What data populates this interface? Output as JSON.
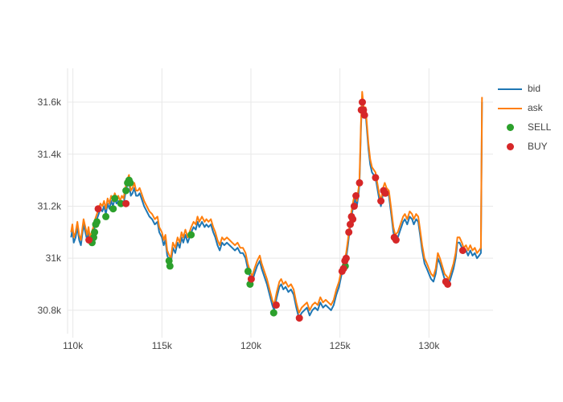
{
  "page": {
    "background": "#ffffff"
  },
  "chart_data": {
    "type": "line",
    "title": "",
    "xlabel": "",
    "ylabel": "",
    "grid": true,
    "grid_color": "#e8e8e8",
    "axis_line_color": "#e5e5e5",
    "tick_label_color": "#444444",
    "legend_position": "top-right-outside",
    "xlim": [
      109.7,
      133.6
    ],
    "ylim": [
      30.71,
      31.73
    ],
    "x_ticks": [
      {
        "v": 110,
        "label": "110k"
      },
      {
        "v": 115,
        "label": "115k"
      },
      {
        "v": 120,
        "label": "120k"
      },
      {
        "v": 125,
        "label": "125k"
      },
      {
        "v": 130,
        "label": "130k"
      }
    ],
    "y_ticks": [
      {
        "v": 30.8,
        "label": "30.8k"
      },
      {
        "v": 31.0,
        "label": "31k"
      },
      {
        "v": 31.2,
        "label": "31.2k"
      },
      {
        "v": 31.4,
        "label": "31.4k"
      },
      {
        "v": 31.6,
        "label": "31.6k"
      }
    ],
    "legend": [
      {
        "label": "bid",
        "type": "line",
        "color": "#1f77b4"
      },
      {
        "label": "ask",
        "type": "line",
        "color": "#ff7f0e"
      },
      {
        "label": "SELL",
        "type": "marker",
        "color": "#2ca02c"
      },
      {
        "label": "BUY",
        "type": "marker",
        "color": "#d62728"
      }
    ],
    "x": [
      109.9,
      109.97,
      110.05,
      110.15,
      110.25,
      110.35,
      110.45,
      110.6,
      110.7,
      110.8,
      110.88,
      110.95,
      111.05,
      111.15,
      111.25,
      111.35,
      111.45,
      111.55,
      111.65,
      111.75,
      111.85,
      111.95,
      112.05,
      112.15,
      112.25,
      112.35,
      112.45,
      112.55,
      112.65,
      112.75,
      112.85,
      112.95,
      113.05,
      113.15,
      113.25,
      113.35,
      113.45,
      113.55,
      113.65,
      113.75,
      113.85,
      114.0,
      114.15,
      114.3,
      114.45,
      114.6,
      114.75,
      114.85,
      115.0,
      115.1,
      115.2,
      115.3,
      115.42,
      115.5,
      115.62,
      115.75,
      115.88,
      116.0,
      116.1,
      116.2,
      116.32,
      116.45,
      116.55,
      116.65,
      116.78,
      116.9,
      117.0,
      117.1,
      117.25,
      117.4,
      117.5,
      117.62,
      117.75,
      117.88,
      118.0,
      118.12,
      118.25,
      118.38,
      118.5,
      118.65,
      118.8,
      118.95,
      119.1,
      119.25,
      119.4,
      119.55,
      119.7,
      119.82,
      119.95,
      120.07,
      120.2,
      120.35,
      120.5,
      120.6,
      120.75,
      120.9,
      121.05,
      121.2,
      121.3,
      121.45,
      121.6,
      121.7,
      121.82,
      121.95,
      122.1,
      122.25,
      122.4,
      122.55,
      122.7,
      122.85,
      123.0,
      123.15,
      123.3,
      123.45,
      123.6,
      123.75,
      123.9,
      124.05,
      124.2,
      124.35,
      124.5,
      124.65,
      124.8,
      124.95,
      125.1,
      125.25,
      125.35,
      125.45,
      125.55,
      125.65,
      125.75,
      125.85,
      125.95,
      126.05,
      126.1,
      126.18,
      126.25,
      126.32,
      126.38,
      126.44,
      126.5,
      126.6,
      126.7,
      126.8,
      126.9,
      127.0,
      127.1,
      127.2,
      127.3,
      127.42,
      127.52,
      127.62,
      127.75,
      127.88,
      128.0,
      128.1,
      128.25,
      128.4,
      128.55,
      128.65,
      128.78,
      128.92,
      129.05,
      129.15,
      129.28,
      129.4,
      129.5,
      129.62,
      129.75,
      129.88,
      130.0,
      130.12,
      130.25,
      130.38,
      130.5,
      130.62,
      130.75,
      130.88,
      131.0,
      131.12,
      131.25,
      131.38,
      131.5,
      131.6,
      131.72,
      131.85,
      131.95,
      132.08,
      132.2,
      132.32,
      132.45,
      132.58,
      132.7,
      132.82,
      132.92,
      132.98
    ],
    "series": [
      {
        "name": "bid",
        "color": "#1f77b4",
        "width": 2,
        "y": [
          31.08,
          31.11,
          31.06,
          31.08,
          31.12,
          31.07,
          31.05,
          31.13,
          31.1,
          31.07,
          31.1,
          31.06,
          31.08,
          31.1,
          31.13,
          31.15,
          31.17,
          31.19,
          31.18,
          31.2,
          31.17,
          31.21,
          31.19,
          31.22,
          31.2,
          31.23,
          31.21,
          31.22,
          31.2,
          31.22,
          31.21,
          31.25,
          31.28,
          31.3,
          31.24,
          31.25,
          31.27,
          31.24,
          31.24,
          31.25,
          31.23,
          31.2,
          31.18,
          31.16,
          31.15,
          31.13,
          31.14,
          31.1,
          31.08,
          31.05,
          31.07,
          31.01,
          30.99,
          30.98,
          31.04,
          31.02,
          31.06,
          31.04,
          31.08,
          31.06,
          31.09,
          31.06,
          31.08,
          31.1,
          31.12,
          31.11,
          31.14,
          31.12,
          31.14,
          31.12,
          31.13,
          31.12,
          31.13,
          31.1,
          31.08,
          31.05,
          31.03,
          31.06,
          31.05,
          31.06,
          31.05,
          31.04,
          31.03,
          31.04,
          31.02,
          31.02,
          31.0,
          30.96,
          30.93,
          30.91,
          30.94,
          30.97,
          30.99,
          30.96,
          30.93,
          30.9,
          30.86,
          30.82,
          30.8,
          30.85,
          30.89,
          30.9,
          30.88,
          30.89,
          30.87,
          30.88,
          30.86,
          30.81,
          30.77,
          30.79,
          30.8,
          30.81,
          30.78,
          30.8,
          30.81,
          30.8,
          30.83,
          30.81,
          30.82,
          30.81,
          30.8,
          30.82,
          30.86,
          30.89,
          30.94,
          30.97,
          31.0,
          31.05,
          31.11,
          31.16,
          31.2,
          31.23,
          31.2,
          31.25,
          31.29,
          31.5,
          31.62,
          31.57,
          31.54,
          31.56,
          31.51,
          31.42,
          31.36,
          31.33,
          31.32,
          31.31,
          31.27,
          31.23,
          31.2,
          31.25,
          31.27,
          31.25,
          31.24,
          31.17,
          31.1,
          31.07,
          31.08,
          31.11,
          31.14,
          31.15,
          31.13,
          31.16,
          31.15,
          31.13,
          31.15,
          31.14,
          31.09,
          31.03,
          30.98,
          30.96,
          30.94,
          30.92,
          30.91,
          30.94,
          31.0,
          30.98,
          30.95,
          30.92,
          30.91,
          30.9,
          30.93,
          30.96,
          31.0,
          31.06,
          31.06,
          31.04,
          31.02,
          31.03,
          31.01,
          31.03,
          31.01,
          31.02,
          31.0,
          31.01,
          31.02,
          31.6
        ]
      },
      {
        "name": "ask",
        "color": "#ff7f0e",
        "width": 2,
        "y": [
          31.1,
          31.13,
          31.08,
          31.1,
          31.14,
          31.09,
          31.07,
          31.15,
          31.12,
          31.09,
          31.12,
          31.08,
          31.1,
          31.12,
          31.15,
          31.17,
          31.19,
          31.21,
          31.2,
          31.22,
          31.19,
          31.23,
          31.21,
          31.24,
          31.22,
          31.25,
          31.23,
          31.24,
          31.22,
          31.24,
          31.23,
          31.27,
          31.3,
          31.32,
          31.26,
          31.27,
          31.29,
          31.26,
          31.26,
          31.27,
          31.25,
          31.22,
          31.2,
          31.18,
          31.17,
          31.15,
          31.16,
          31.12,
          31.1,
          31.07,
          31.09,
          31.03,
          31.01,
          31.0,
          31.06,
          31.04,
          31.08,
          31.06,
          31.1,
          31.08,
          31.11,
          31.08,
          31.1,
          31.12,
          31.14,
          31.13,
          31.16,
          31.14,
          31.16,
          31.14,
          31.15,
          31.14,
          31.15,
          31.12,
          31.1,
          31.07,
          31.05,
          31.08,
          31.07,
          31.08,
          31.07,
          31.06,
          31.05,
          31.06,
          31.04,
          31.04,
          31.02,
          30.98,
          30.95,
          30.93,
          30.96,
          30.99,
          31.01,
          30.98,
          30.95,
          30.92,
          30.88,
          30.84,
          30.82,
          30.87,
          30.91,
          30.92,
          30.9,
          30.91,
          30.89,
          30.9,
          30.88,
          30.83,
          30.79,
          30.81,
          30.82,
          30.83,
          30.8,
          30.82,
          30.83,
          30.82,
          30.85,
          30.83,
          30.84,
          30.83,
          30.82,
          30.84,
          30.88,
          30.91,
          30.96,
          30.99,
          31.02,
          31.07,
          31.13,
          31.18,
          31.22,
          31.25,
          31.22,
          31.27,
          31.31,
          31.52,
          31.64,
          31.59,
          31.56,
          31.58,
          31.53,
          31.44,
          31.38,
          31.35,
          31.34,
          31.33,
          31.29,
          31.25,
          31.22,
          31.27,
          31.29,
          31.27,
          31.26,
          31.19,
          31.12,
          31.09,
          31.1,
          31.13,
          31.16,
          31.17,
          31.15,
          31.18,
          31.17,
          31.15,
          31.17,
          31.16,
          31.11,
          31.05,
          31.0,
          30.98,
          30.96,
          30.94,
          30.93,
          30.96,
          31.02,
          31.0,
          30.97,
          30.94,
          30.93,
          30.92,
          30.95,
          30.98,
          31.02,
          31.08,
          31.08,
          31.06,
          31.04,
          31.05,
          31.03,
          31.05,
          31.03,
          31.04,
          31.02,
          31.03,
          31.04,
          31.62
        ]
      }
    ],
    "markers": [
      {
        "name": "SELL",
        "color": "#2ca02c",
        "size": 9,
        "points": [
          [
            111.08,
            31.06
          ],
          [
            111.17,
            31.08
          ],
          [
            111.22,
            31.1
          ],
          [
            111.28,
            31.13
          ],
          [
            111.35,
            31.14
          ],
          [
            111.85,
            31.16
          ],
          [
            112.26,
            31.19
          ],
          [
            112.35,
            31.23
          ],
          [
            112.7,
            31.21
          ],
          [
            112.98,
            31.26
          ],
          [
            113.07,
            31.29
          ],
          [
            113.15,
            31.3
          ],
          [
            113.22,
            31.29
          ],
          [
            115.4,
            30.99
          ],
          [
            115.45,
            30.97
          ],
          [
            116.64,
            31.09
          ],
          [
            119.84,
            30.95
          ],
          [
            119.95,
            30.9
          ],
          [
            121.28,
            30.79
          ],
          [
            125.3,
            30.97
          ]
        ]
      },
      {
        "name": "BUY",
        "color": "#d62728",
        "size": 9,
        "points": [
          [
            110.9,
            31.07
          ],
          [
            111.42,
            31.19
          ],
          [
            112.98,
            31.21
          ],
          [
            120.02,
            30.92
          ],
          [
            121.42,
            30.82
          ],
          [
            122.72,
            30.77
          ],
          [
            125.12,
            30.95
          ],
          [
            125.2,
            30.96
          ],
          [
            125.28,
            30.99
          ],
          [
            125.35,
            31.0
          ],
          [
            125.5,
            31.1
          ],
          [
            125.58,
            31.13
          ],
          [
            125.65,
            31.16
          ],
          [
            125.72,
            31.15
          ],
          [
            125.8,
            31.2
          ],
          [
            125.9,
            31.24
          ],
          [
            126.1,
            31.29
          ],
          [
            126.2,
            31.57
          ],
          [
            126.26,
            31.6
          ],
          [
            126.32,
            31.57
          ],
          [
            126.38,
            31.55
          ],
          [
            127.0,
            31.31
          ],
          [
            127.3,
            31.22
          ],
          [
            127.45,
            31.26
          ],
          [
            127.55,
            31.25
          ],
          [
            128.05,
            31.08
          ],
          [
            128.15,
            31.07
          ],
          [
            130.95,
            30.91
          ],
          [
            131.05,
            30.9
          ],
          [
            131.9,
            31.03
          ]
        ]
      }
    ]
  }
}
